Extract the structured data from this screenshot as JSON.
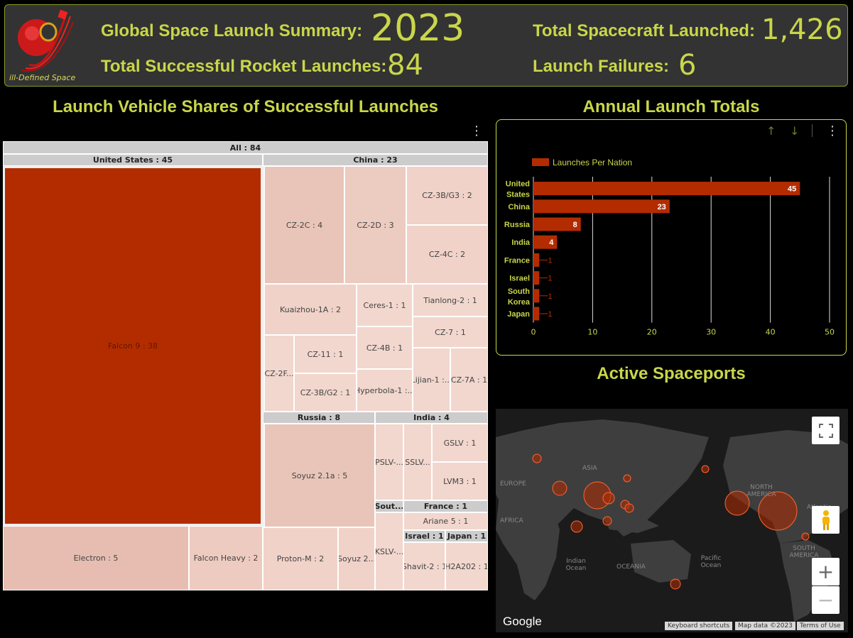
{
  "header": {
    "logo_text": "ill-Defined Space",
    "summary_label": "Global Space Launch Summary:",
    "summary_year": "2023",
    "spacecraft_label": "Total Spacecraft Launched:",
    "spacecraft_value": "1,426",
    "successful_label": "Total Successful Rocket Launches:",
    "successful_value": "84",
    "failures_label": "Launch Failures:",
    "failures_value": "6"
  },
  "treemap": {
    "title": "Launch Vehicle Shares of Successful Launches",
    "root": "All : 84",
    "groups": {
      "us": "United States : 45",
      "china": "China : 23",
      "russia": "Russia : 8",
      "india": "India : 4",
      "south_korea": "Sout...",
      "france": "France : 1",
      "israel": "Israel : 1",
      "japan": "Japan : 1"
    },
    "leaves": {
      "falcon9": "Falcon 9 : 38",
      "electron": "Electron : 5",
      "falcon_heavy": "Falcon Heavy : 2",
      "cz2c": "CZ-2C : 4",
      "cz2d": "CZ-2D : 3",
      "cz3bg3": "CZ-3B/G3 : 2",
      "cz4c": "CZ-4C : 2",
      "kuaizhou": "Kuaizhou-1A : 2",
      "ceres": "Ceres-1 : 1",
      "tianlong": "Tianlong-2 : 1",
      "cz7": "CZ-7 : 1",
      "cz4b": "CZ-4B : 1",
      "cz2f": "CZ-2F...",
      "cz11": "CZ-11 : 1",
      "cz3bg2": "CZ-3B/G2 : 1",
      "hyperbola": "Hyperbola-1 :...",
      "lijian": "Lijian-1 :...",
      "cz7a": "CZ-7A : 1",
      "soyuz21a": "Soyuz 2.1a : 5",
      "protonm": "Proton-M : 2",
      "soyuz2b": "Soyuz 2...",
      "pslv": "PSLV-...",
      "sslv": "SSLV...",
      "gslv": "GSLV : 1",
      "lvm3": "LVM3 : 1",
      "kslv": "KSLV-...",
      "ariane5": "Ariane 5 : 1",
      "shavit": "Shavit-2 : 1",
      "h2a": "H2A202 : 1"
    },
    "colors": {
      "dominant": "#b32c00",
      "light": "#eecbc0",
      "mid": "#e6bdb0"
    }
  },
  "bar": {
    "title": "Annual Launch Totals",
    "legend": "Launches Per Nation",
    "color": "#b32c00"
  },
  "chart_data": {
    "type": "bar",
    "orientation": "horizontal",
    "categories": [
      "United States",
      "China",
      "Russia",
      "India",
      "France",
      "Israel",
      "South Korea",
      "Japan"
    ],
    "category_lines": [
      [
        "United",
        "States"
      ],
      [
        "China"
      ],
      [
        "Russia"
      ],
      [
        "India"
      ],
      [
        "France"
      ],
      [
        "Israel"
      ],
      [
        "South",
        "Korea"
      ],
      [
        "Japan"
      ]
    ],
    "series": [
      {
        "name": "Launches Per Nation",
        "values": [
          45,
          23,
          8,
          4,
          1,
          1,
          1,
          1
        ]
      }
    ],
    "xlim": [
      0,
      50
    ],
    "xticks": [
      0,
      10,
      20,
      30,
      40,
      50
    ],
    "grid": true,
    "legend_position": "top-left"
  },
  "map": {
    "title": "Active Spaceports",
    "labels": {
      "asia": "ASIA",
      "europe": "EUROPE",
      "africa": "AFRICA",
      "north_america": "NORTH AMERICA",
      "south_america": "SOUTH AMERICA",
      "oceania": "OCEANIA",
      "indian_ocean": "Indian Ocean",
      "pacific_ocean": "Pacific Ocean",
      "atlantic": "Atlantic"
    },
    "google": "Google",
    "footer": [
      "Keyboard shortcuts",
      "Map data ©2023",
      "Terms of Use"
    ],
    "zoom_in": "+",
    "zoom_out": "−"
  }
}
